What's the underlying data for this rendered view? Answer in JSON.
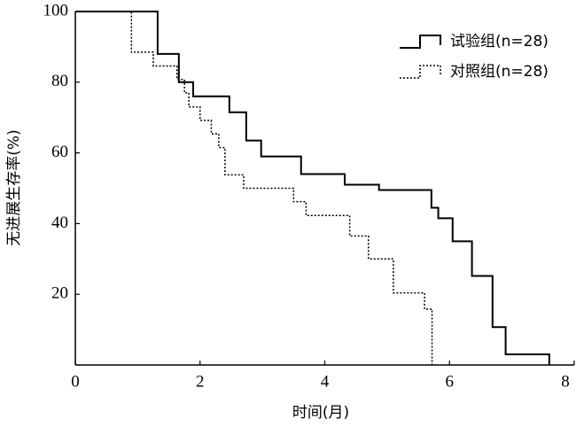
{
  "chart_data": {
    "type": "step",
    "xlabel": "时间(月)",
    "ylabel": "无进展生存率(%)",
    "xlim": [
      0,
      8
    ],
    "xticks": [
      0,
      2,
      4,
      6,
      8
    ],
    "ylim": [
      0,
      100
    ],
    "yticks": [
      20,
      40,
      60,
      80,
      100
    ],
    "series": [
      {
        "name": "试验组(n=28)",
        "color": "#000000",
        "dash": "solid",
        "x": [
          0,
          1.32,
          1.66,
          1.89,
          2.47,
          2.74,
          2.98,
          3.62,
          4.32,
          4.87,
          5.71,
          5.82,
          6.05,
          6.36,
          6.69,
          6.9,
          7.6
        ],
        "values": [
          100,
          88,
          80,
          76,
          71.5,
          63.5,
          59,
          54,
          51,
          49.5,
          44.5,
          41.5,
          35,
          25.2,
          10.7,
          3,
          0
        ]
      },
      {
        "name": "对照组(n=28)",
        "color": "#000000",
        "dash": "dotted",
        "x": [
          0,
          0.9,
          1.25,
          1.63,
          1.75,
          1.82,
          2.0,
          2.18,
          2.3,
          2.4,
          2.7,
          3.5,
          3.7,
          4.4,
          4.7,
          5.1,
          5.6,
          5.72
        ],
        "values": [
          100,
          88.5,
          84.6,
          80.8,
          77,
          73,
          69.2,
          65.4,
          61.5,
          53.8,
          50,
          46.2,
          42.3,
          36.5,
          30,
          20.4,
          15.8,
          0
        ]
      }
    ]
  }
}
